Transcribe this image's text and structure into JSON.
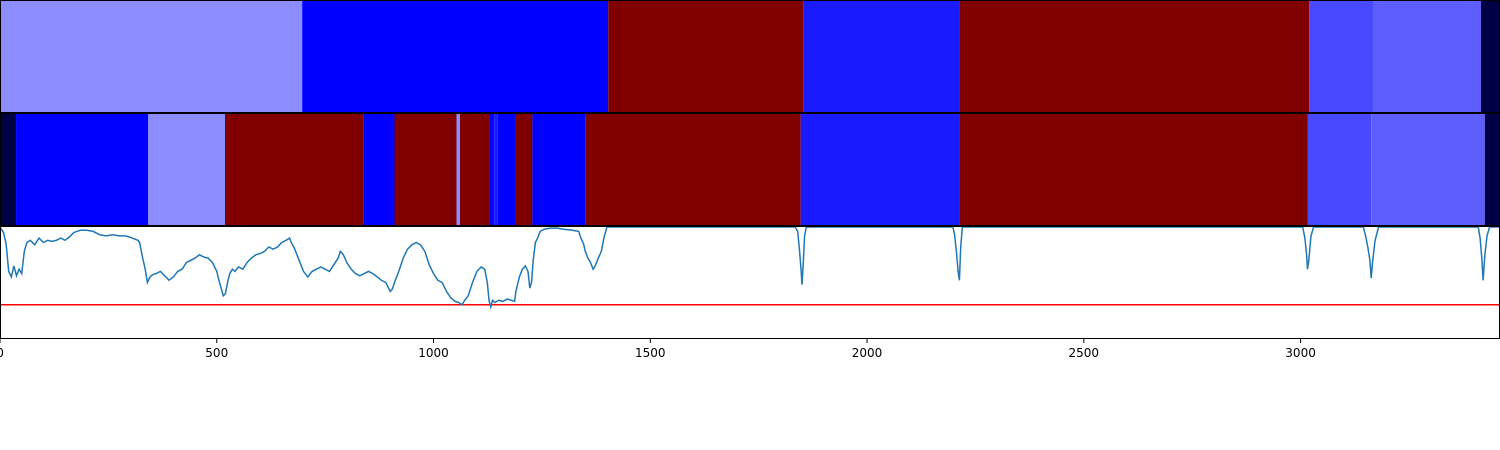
{
  "chart_data": {
    "type": "segment-strips-with-line",
    "xlim": [
      0,
      3460
    ],
    "x_ticks": [
      0,
      500,
      1000,
      1500,
      2000,
      2500,
      3000
    ],
    "x_tick_labels": [
      "0",
      "500",
      "1000",
      "1500",
      "2000",
      "2500",
      "3000"
    ],
    "strip_1": {
      "segments": [
        {
          "start": 0,
          "end": 697,
          "color": "#8c8cff"
        },
        {
          "start": 697,
          "end": 1403,
          "color": "#0000ff"
        },
        {
          "start": 1403,
          "end": 1853,
          "color": "#800000"
        },
        {
          "start": 1853,
          "end": 2213,
          "color": "#1a1aff"
        },
        {
          "start": 2213,
          "end": 3020,
          "color": "#800000"
        },
        {
          "start": 3020,
          "end": 3168,
          "color": "#4848ff"
        },
        {
          "start": 3168,
          "end": 3416,
          "color": "#5e5eff"
        },
        {
          "start": 3416,
          "end": 3460,
          "color": "#000044"
        }
      ]
    },
    "strip_2": {
      "segments": [
        {
          "start": 0,
          "end": 37,
          "color": "#000044"
        },
        {
          "start": 37,
          "end": 342,
          "color": "#0000ff"
        },
        {
          "start": 342,
          "end": 519,
          "color": "#8c8cff"
        },
        {
          "start": 519,
          "end": 838,
          "color": "#800000"
        },
        {
          "start": 838,
          "end": 910,
          "color": "#0000ff"
        },
        {
          "start": 910,
          "end": 1053,
          "color": "#800000"
        },
        {
          "start": 1053,
          "end": 1061,
          "color": "#8c8cff"
        },
        {
          "start": 1061,
          "end": 1129,
          "color": "#800000"
        },
        {
          "start": 1129,
          "end": 1140,
          "color": "#0000ff"
        },
        {
          "start": 1140,
          "end": 1148,
          "color": "#1a1aff"
        },
        {
          "start": 1148,
          "end": 1188,
          "color": "#0000ff"
        },
        {
          "start": 1188,
          "end": 1228,
          "color": "#800000"
        },
        {
          "start": 1228,
          "end": 1350,
          "color": "#0000ff"
        },
        {
          "start": 1350,
          "end": 1847,
          "color": "#800000"
        },
        {
          "start": 1847,
          "end": 2213,
          "color": "#1a1aff"
        },
        {
          "start": 2213,
          "end": 3016,
          "color": "#800000"
        },
        {
          "start": 3016,
          "end": 3163,
          "color": "#4848ff"
        },
        {
          "start": 3163,
          "end": 3425,
          "color": "#5e5eff"
        },
        {
          "start": 3425,
          "end": 3460,
          "color": "#000044"
        }
      ]
    },
    "line_panel": {
      "ylim": [
        0,
        1
      ],
      "line_color": "#1f77b4",
      "threshold": 0.3,
      "threshold_color": "#ff0000",
      "points": [
        [
          0,
          1.0
        ],
        [
          8,
          0.95
        ],
        [
          14,
          0.85
        ],
        [
          20,
          0.6
        ],
        [
          26,
          0.55
        ],
        [
          32,
          0.65
        ],
        [
          38,
          0.56
        ],
        [
          44,
          0.62
        ],
        [
          50,
          0.58
        ],
        [
          56,
          0.78
        ],
        [
          62,
          0.86
        ],
        [
          70,
          0.88
        ],
        [
          80,
          0.84
        ],
        [
          90,
          0.9
        ],
        [
          100,
          0.86
        ],
        [
          110,
          0.88
        ],
        [
          120,
          0.87
        ],
        [
          130,
          0.88
        ],
        [
          140,
          0.9
        ],
        [
          150,
          0.88
        ],
        [
          160,
          0.91
        ],
        [
          170,
          0.95
        ],
        [
          185,
          0.97
        ],
        [
          200,
          0.97
        ],
        [
          215,
          0.96
        ],
        [
          230,
          0.93
        ],
        [
          245,
          0.92
        ],
        [
          260,
          0.93
        ],
        [
          275,
          0.92
        ],
        [
          290,
          0.92
        ],
        [
          305,
          0.9
        ],
        [
          318,
          0.88
        ],
        [
          322,
          0.86
        ],
        [
          328,
          0.74
        ],
        [
          335,
          0.62
        ],
        [
          340,
          0.5
        ],
        [
          346,
          0.55
        ],
        [
          352,
          0.57
        ],
        [
          360,
          0.58
        ],
        [
          370,
          0.6
        ],
        [
          380,
          0.56
        ],
        [
          390,
          0.52
        ],
        [
          400,
          0.55
        ],
        [
          410,
          0.6
        ],
        [
          420,
          0.62
        ],
        [
          430,
          0.68
        ],
        [
          440,
          0.7
        ],
        [
          450,
          0.72
        ],
        [
          460,
          0.75
        ],
        [
          470,
          0.73
        ],
        [
          480,
          0.72
        ],
        [
          490,
          0.68
        ],
        [
          500,
          0.6
        ],
        [
          505,
          0.52
        ],
        [
          510,
          0.45
        ],
        [
          515,
          0.38
        ],
        [
          520,
          0.4
        ],
        [
          526,
          0.52
        ],
        [
          530,
          0.58
        ],
        [
          536,
          0.62
        ],
        [
          542,
          0.6
        ],
        [
          550,
          0.64
        ],
        [
          560,
          0.62
        ],
        [
          570,
          0.68
        ],
        [
          580,
          0.72
        ],
        [
          590,
          0.75
        ],
        [
          600,
          0.76
        ],
        [
          610,
          0.78
        ],
        [
          620,
          0.82
        ],
        [
          630,
          0.8
        ],
        [
          640,
          0.82
        ],
        [
          650,
          0.86
        ],
        [
          660,
          0.88
        ],
        [
          668,
          0.9
        ],
        [
          672,
          0.86
        ],
        [
          680,
          0.8
        ],
        [
          690,
          0.7
        ],
        [
          700,
          0.6
        ],
        [
          710,
          0.55
        ],
        [
          720,
          0.6
        ],
        [
          730,
          0.62
        ],
        [
          740,
          0.64
        ],
        [
          750,
          0.62
        ],
        [
          760,
          0.6
        ],
        [
          770,
          0.66
        ],
        [
          780,
          0.72
        ],
        [
          785,
          0.78
        ],
        [
          792,
          0.75
        ],
        [
          800,
          0.68
        ],
        [
          810,
          0.62
        ],
        [
          820,
          0.58
        ],
        [
          830,
          0.56
        ],
        [
          840,
          0.58
        ],
        [
          850,
          0.6
        ],
        [
          860,
          0.58
        ],
        [
          870,
          0.55
        ],
        [
          880,
          0.52
        ],
        [
          890,
          0.5
        ],
        [
          900,
          0.42
        ],
        [
          905,
          0.44
        ],
        [
          910,
          0.5
        ],
        [
          920,
          0.6
        ],
        [
          930,
          0.72
        ],
        [
          940,
          0.8
        ],
        [
          950,
          0.84
        ],
        [
          960,
          0.86
        ],
        [
          970,
          0.84
        ],
        [
          980,
          0.78
        ],
        [
          990,
          0.66
        ],
        [
          1000,
          0.58
        ],
        [
          1010,
          0.52
        ],
        [
          1020,
          0.5
        ],
        [
          1030,
          0.42
        ],
        [
          1040,
          0.36
        ],
        [
          1050,
          0.33
        ],
        [
          1058,
          0.32
        ],
        [
          1066,
          0.3
        ],
        [
          1072,
          0.34
        ],
        [
          1080,
          0.38
        ],
        [
          1090,
          0.5
        ],
        [
          1100,
          0.6
        ],
        [
          1110,
          0.64
        ],
        [
          1118,
          0.62
        ],
        [
          1124,
          0.5
        ],
        [
          1128,
          0.34
        ],
        [
          1132,
          0.28
        ],
        [
          1136,
          0.34
        ],
        [
          1142,
          0.32
        ],
        [
          1150,
          0.34
        ],
        [
          1160,
          0.33
        ],
        [
          1170,
          0.35
        ],
        [
          1180,
          0.34
        ],
        [
          1187,
          0.33
        ],
        [
          1190,
          0.42
        ],
        [
          1198,
          0.55
        ],
        [
          1205,
          0.62
        ],
        [
          1212,
          0.65
        ],
        [
          1218,
          0.6
        ],
        [
          1222,
          0.45
        ],
        [
          1226,
          0.5
        ],
        [
          1230,
          0.7
        ],
        [
          1235,
          0.86
        ],
        [
          1240,
          0.9
        ],
        [
          1246,
          0.96
        ],
        [
          1255,
          0.98
        ],
        [
          1270,
          0.99
        ],
        [
          1285,
          0.99
        ],
        [
          1300,
          0.98
        ],
        [
          1320,
          0.97
        ],
        [
          1335,
          0.96
        ],
        [
          1340,
          0.9
        ],
        [
          1346,
          0.85
        ],
        [
          1350,
          0.78
        ],
        [
          1356,
          0.72
        ],
        [
          1362,
          0.68
        ],
        [
          1368,
          0.62
        ],
        [
          1373,
          0.65
        ],
        [
          1380,
          0.72
        ],
        [
          1387,
          0.78
        ],
        [
          1393,
          0.9
        ],
        [
          1400,
          1.0
        ],
        [
          1834,
          1.0
        ],
        [
          1840,
          0.96
        ],
        [
          1844,
          0.8
        ],
        [
          1848,
          0.6
        ],
        [
          1850,
          0.48
        ],
        [
          1853,
          0.68
        ],
        [
          1856,
          0.92
        ],
        [
          1860,
          1.0
        ],
        [
          2198,
          1.0
        ],
        [
          2202,
          0.93
        ],
        [
          2206,
          0.78
        ],
        [
          2210,
          0.6
        ],
        [
          2213,
          0.52
        ],
        [
          2216,
          0.82
        ],
        [
          2220,
          1.0
        ],
        [
          3005,
          1.0
        ],
        [
          3010,
          0.9
        ],
        [
          3014,
          0.75
        ],
        [
          3016,
          0.62
        ],
        [
          3019,
          0.7
        ],
        [
          3024,
          0.92
        ],
        [
          3030,
          1.0
        ],
        [
          3145,
          1.0
        ],
        [
          3150,
          0.92
        ],
        [
          3155,
          0.82
        ],
        [
          3160,
          0.7
        ],
        [
          3163,
          0.54
        ],
        [
          3166,
          0.68
        ],
        [
          3172,
          0.88
        ],
        [
          3180,
          1.0
        ],
        [
          3410,
          1.0
        ],
        [
          3414,
          0.9
        ],
        [
          3418,
          0.72
        ],
        [
          3421,
          0.52
        ],
        [
          3425,
          0.74
        ],
        [
          3430,
          0.92
        ],
        [
          3436,
          1.0
        ],
        [
          3460,
          1.0
        ]
      ]
    }
  }
}
